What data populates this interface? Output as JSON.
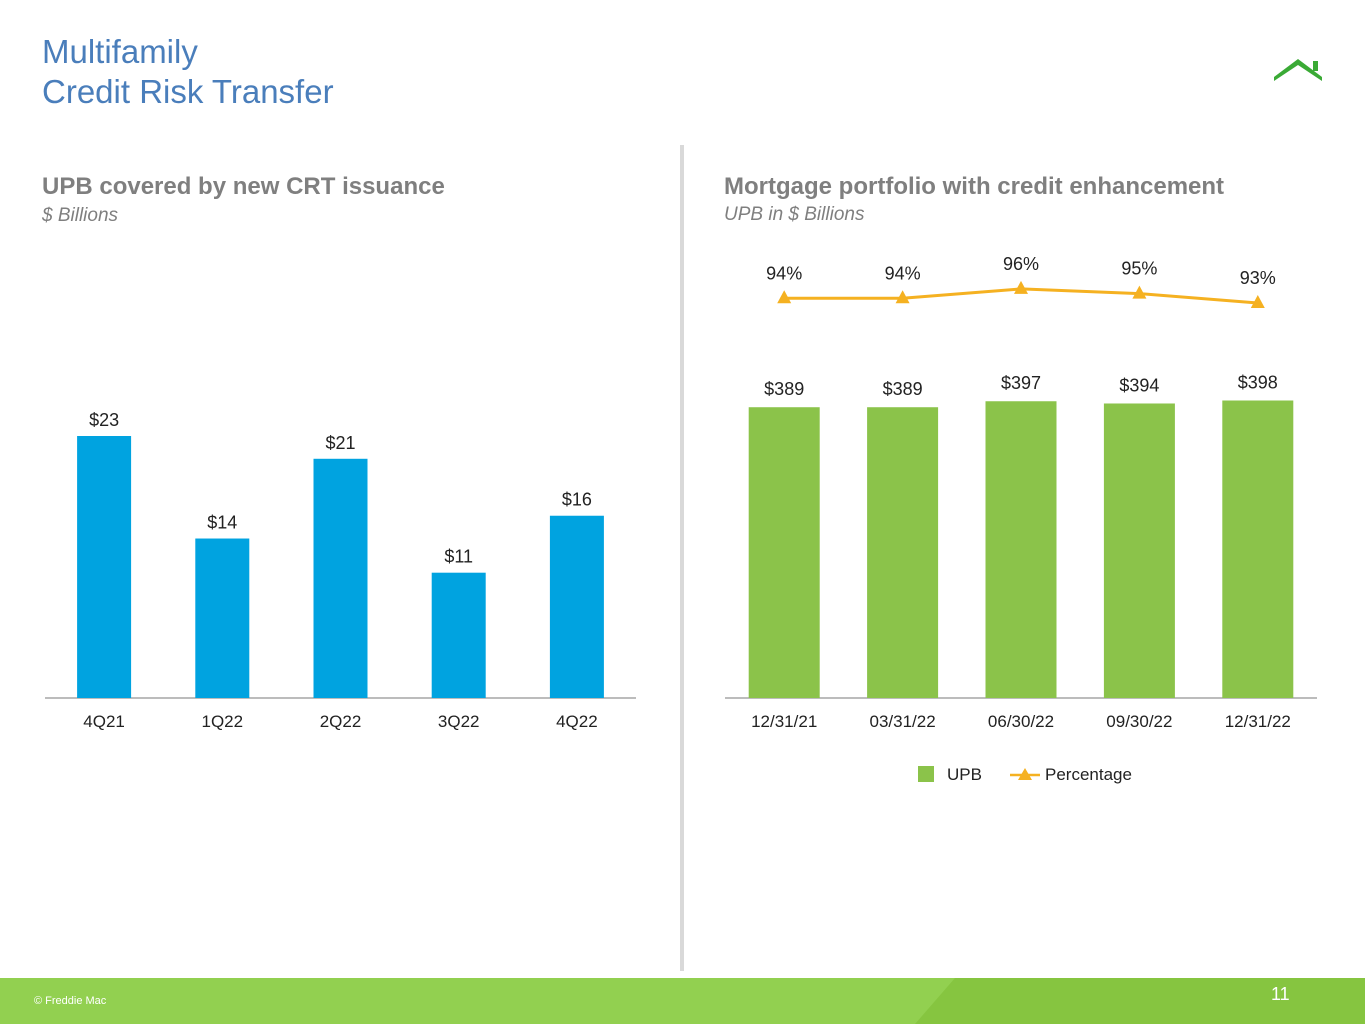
{
  "header": {
    "title_line1": "Multifamily",
    "title_line2": "Credit Risk Transfer",
    "brand_color": "#92d050",
    "title_color": "#4a7ebb"
  },
  "left_panel": {
    "title": "UPB covered by new CRT issuance",
    "subtitle": "$ Billions"
  },
  "right_panel": {
    "title": "Mortgage portfolio with credit enhancement",
    "subtitle": "UPB in $ Billions"
  },
  "legend": {
    "items": [
      {
        "label": "UPB",
        "color": "#8bc34a",
        "marker": "square"
      },
      {
        "label": "Percentage",
        "color": "#f5b121",
        "marker": "triangle-line"
      }
    ]
  },
  "chart_data": [
    {
      "type": "bar",
      "title": "UPB covered by new CRT issuance",
      "subtitle": "$ Billions",
      "categories": [
        "4Q21",
        "1Q22",
        "2Q22",
        "3Q22",
        "4Q22"
      ],
      "values": [
        23,
        14,
        21,
        11,
        16
      ],
      "value_labels": [
        "$23",
        "$14",
        "$21",
        "$11",
        "$16"
      ],
      "color": "#00a3e0",
      "grid": false,
      "legend": null
    },
    {
      "type": "bar",
      "title": "Mortgage portfolio with credit enhancement",
      "subtitle": "UPB in $ Billions",
      "categories": [
        "12/31/21",
        "03/31/22",
        "06/30/22",
        "09/30/22",
        "12/31/22"
      ],
      "series": [
        {
          "name": "UPB",
          "type": "bar",
          "values": [
            389,
            389,
            397,
            394,
            398
          ],
          "labels": [
            "$389",
            "$389",
            "$397",
            "$394",
            "$398"
          ],
          "color": "#8bc34a"
        },
        {
          "name": "Percentage",
          "type": "line",
          "values": [
            94,
            94,
            96,
            95,
            93
          ],
          "labels": [
            "94%",
            "94%",
            "96%",
            "95%",
            "93%"
          ],
          "color": "#f5b121",
          "marker": "triangle"
        }
      ],
      "grid": false,
      "legend": "bottom"
    }
  ],
  "footer": {
    "copyright": "© Freddie Mac",
    "page_number": "11"
  }
}
